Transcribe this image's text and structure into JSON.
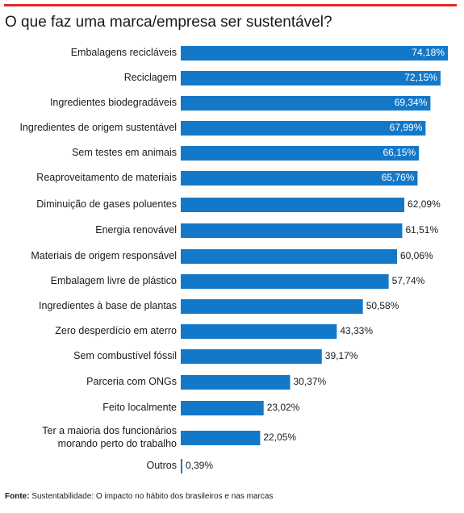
{
  "title": "O que faz uma marca/empresa ser sustentável?",
  "source": {
    "label": "Fonte:",
    "text": "Sustentabilidade: O impacto no hábito dos brasileiros e nas marcas"
  },
  "colors": {
    "bar": "#1478c8",
    "accent_rule": "#e3262b",
    "label_inside": "#ffffff",
    "label_outside": "#1a1a1a"
  },
  "chart_data": {
    "type": "bar",
    "orientation": "horizontal",
    "title": "O que faz uma marca/empresa ser sustentável?",
    "categories": [
      [
        "Embalagens recicláveis"
      ],
      [
        "Reciclagem"
      ],
      [
        "Ingredientes biodegradáveis"
      ],
      [
        "Ingredientes de origem sustentável"
      ],
      [
        "Sem testes em animais"
      ],
      [
        "Reaproveitamento de materiais"
      ],
      [
        "Diminuição de gases poluentes"
      ],
      [
        "Energia renovável"
      ],
      [
        "Materiais de origem responsável"
      ],
      [
        "Embalagem livre de plástico"
      ],
      [
        "Ingredientes à base de plantas"
      ],
      [
        "Zero desperdício em aterro"
      ],
      [
        "Sem combustível fóssil"
      ],
      [
        "Parceria com ONGs"
      ],
      [
        "Feito localmente"
      ],
      [
        "Ter a maioria dos funcionários",
        "morando perto do trabalho"
      ],
      [
        "Outros"
      ]
    ],
    "values": [
      74.18,
      72.15,
      69.34,
      67.99,
      66.15,
      65.76,
      62.09,
      61.51,
      60.06,
      57.74,
      50.58,
      43.33,
      39.17,
      30.37,
      23.02,
      22.05,
      0.39
    ],
    "value_labels": [
      "74,18%",
      "72,15%",
      "69,34%",
      "67,99%",
      "66,15%",
      "65,76%",
      "62,09%",
      "61,51%",
      "60,06%",
      "57,74%",
      "50,58%",
      "43,33%",
      "39,17%",
      "30,37%",
      "23,02%",
      "22,05%",
      "0,39%"
    ],
    "unit": "%",
    "xlim": [
      0,
      74.18
    ],
    "labels_inside_bars": 6,
    "grid": false,
    "legend": "none"
  }
}
